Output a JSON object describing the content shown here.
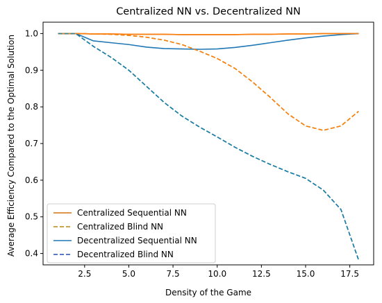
{
  "chart_data": {
    "type": "line",
    "title": "Centralized NN vs. Decentralized NN",
    "xlabel": "Density of the Game",
    "ylabel": "Average Efficiency Compared to the Optimal Solution",
    "xlim": [
      0.15,
      18.85
    ],
    "ylim": [
      0.369,
      1.031
    ],
    "xticks": [
      2.5,
      5.0,
      7.5,
      10.0,
      12.5,
      15.0,
      17.5
    ],
    "xtick_labels": [
      "2.5",
      "5.0",
      "7.5",
      "10.0",
      "12.5",
      "15.0",
      "17.5"
    ],
    "yticks": [
      0.4,
      0.5,
      0.6,
      0.7,
      0.8,
      0.9,
      1.0
    ],
    "ytick_labels": [
      "0.4",
      "0.5",
      "0.6",
      "0.7",
      "0.8",
      "0.9",
      "1.0"
    ],
    "grid": false,
    "legend_position": "lower-left",
    "x": [
      1,
      2,
      3,
      4,
      5,
      6,
      7,
      8,
      9,
      10,
      11,
      12,
      13,
      14,
      15,
      16,
      17,
      18
    ],
    "series": [
      {
        "name": "Centralized Sequential NN",
        "color": "#d4720a",
        "dash": "solid",
        "values": [
          1.0,
          1.0,
          0.999,
          0.999,
          0.998,
          0.998,
          0.998,
          0.997,
          0.997,
          0.997,
          0.997,
          0.998,
          0.998,
          0.999,
          0.999,
          1.0,
          1.0,
          1.0
        ]
      },
      {
        "name": "Centralized Blind NN",
        "color": "#b8860b",
        "dash": "dashed",
        "values": [
          1.0,
          1.0,
          0.999,
          0.998,
          0.995,
          0.99,
          0.982,
          0.97,
          0.952,
          0.932,
          0.905,
          0.868,
          0.826,
          0.781,
          0.748,
          0.736,
          0.748,
          0.788
        ]
      },
      {
        "name": "Decentralized Sequential NN",
        "color": "#1f77b4",
        "dash": "solid",
        "values": [
          1.0,
          1.0,
          0.98,
          0.975,
          0.97,
          0.963,
          0.959,
          0.958,
          0.957,
          0.958,
          0.962,
          0.968,
          0.975,
          0.982,
          0.988,
          0.993,
          0.997,
          1.0
        ]
      },
      {
        "name": "Decentralized Blind NN",
        "color": "#1f4eb4",
        "dash": "dashed",
        "values": [
          1.0,
          1.0,
          0.965,
          0.935,
          0.9,
          0.856,
          0.812,
          0.775,
          0.745,
          0.718,
          0.69,
          0.665,
          0.643,
          0.623,
          0.605,
          0.573,
          0.52,
          0.382
        ]
      }
    ],
    "overlay_lines": [
      {
        "color": "#ff7f0e",
        "dash": "solid",
        "values": [
          1.0,
          1.0,
          0.999,
          0.999,
          0.998,
          0.998,
          0.998,
          0.997,
          0.997,
          0.997,
          0.997,
          0.998,
          0.998,
          0.999,
          0.999,
          1.0,
          1.0,
          1.0
        ]
      },
      {
        "color": "#ff7f0e",
        "dash": "dashed",
        "values": [
          1.0,
          1.0,
          0.999,
          0.998,
          0.995,
          0.99,
          0.982,
          0.97,
          0.952,
          0.932,
          0.905,
          0.868,
          0.826,
          0.781,
          0.748,
          0.736,
          0.748,
          0.788
        ]
      },
      {
        "color": "#17869e",
        "dash": "dashed",
        "values": [
          1.0,
          1.0,
          0.965,
          0.935,
          0.9,
          0.856,
          0.812,
          0.775,
          0.745,
          0.718,
          0.69,
          0.665,
          0.643,
          0.623,
          0.605,
          0.573,
          0.52,
          0.382
        ]
      }
    ]
  }
}
